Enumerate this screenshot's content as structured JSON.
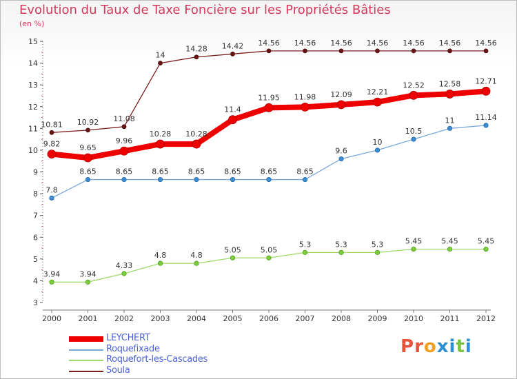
{
  "header": {
    "title": "Evolution du Taux de Taxe Foncière sur les Propriétés Bâties",
    "unit": "(en %)"
  },
  "logo": {
    "text": "Proxiti",
    "colors": [
      "#e6553b",
      "#e6553b",
      "#f2a024",
      "#2b8fd6",
      "#2b8fd6",
      "#7ac143",
      "#2b8fd6"
    ]
  },
  "chart_data": {
    "type": "line",
    "x": [
      "2000",
      "2001",
      "2002",
      "2003",
      "2004",
      "2005",
      "2006",
      "2007",
      "2008",
      "2009",
      "2010",
      "2011",
      "2012"
    ],
    "ylim": [
      3,
      15
    ],
    "yticks": [
      3,
      4,
      5,
      6,
      7,
      8,
      9,
      10,
      11,
      12,
      13,
      14,
      15
    ],
    "ylabel": "(en %)",
    "grid": false,
    "legend_position": "bottom-left",
    "series": [
      {
        "name": "Soula",
        "color": "#7a1f1f",
        "values": [
          10.81,
          10.92,
          11.08,
          14,
          14.28,
          14.42,
          14.56,
          14.56,
          14.56,
          14.56,
          14.56,
          14.56,
          14.56
        ],
        "labels": [
          "10.81",
          "10.92",
          "11.08",
          "14",
          "14.28",
          "14.42",
          "14.56",
          "14.56",
          "14.56",
          "14.56",
          "14.56",
          "14.56",
          "14.56"
        ]
      },
      {
        "name": "Roquefort-les-Cascades",
        "color": "#9ed96a",
        "values": [
          3.94,
          3.94,
          4.33,
          4.8,
          4.8,
          5.05,
          5.05,
          5.3,
          5.3,
          5.3,
          5.45,
          5.45,
          5.45
        ],
        "labels": [
          "3.94",
          "3.94",
          "4.33",
          "4.8",
          "4.8",
          "5.05",
          "5.05",
          "5.3",
          "5.3",
          "5.3",
          "5.45",
          "5.45",
          "5.45"
        ]
      },
      {
        "name": "Roquefixade",
        "color": "#7aa6d9",
        "values": [
          7.8,
          8.65,
          8.65,
          8.65,
          8.65,
          8.65,
          8.65,
          8.65,
          9.6,
          10,
          10.5,
          11,
          11.14
        ],
        "labels": [
          "7.8",
          "8.65",
          "8.65",
          "8.65",
          "8.65",
          "8.65",
          "8.65",
          "8.65",
          "9.6",
          "10",
          "10.5",
          "11",
          "11.14"
        ]
      },
      {
        "name": "LEYCHERT",
        "color": "#ee0000",
        "values": [
          9.82,
          9.65,
          9.96,
          10.28,
          10.28,
          11.4,
          11.95,
          11.98,
          12.09,
          12.21,
          12.52,
          12.58,
          12.71
        ],
        "labels": [
          "9.82",
          "9.65",
          "9.96",
          "10.28",
          "10.28",
          "11.4",
          "11.95",
          "11.98",
          "12.09",
          "12.21",
          "12.52",
          "12.58",
          "12.71"
        ]
      }
    ],
    "legend": [
      "LEYCHERT",
      "Roquefixade",
      "Roquefort-les-Cascades",
      "Soula"
    ]
  }
}
